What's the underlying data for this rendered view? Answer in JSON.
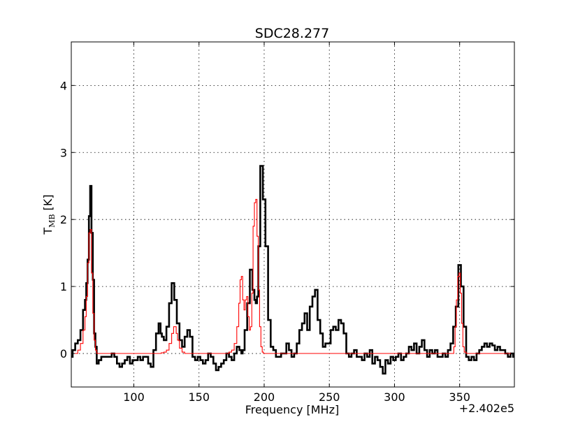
{
  "chart_data": {
    "type": "line",
    "title": "SDC28.277",
    "xlabel": "Frequency [MHz]",
    "ylabel_main": "T",
    "ylabel_sub": "MB",
    "ylabel_unit": " [K]",
    "offset_text": "+2.402e5",
    "xlim": [
      52,
      392
    ],
    "ylim": [
      -0.5,
      4.65
    ],
    "xticks": [
      100,
      150,
      200,
      250,
      300,
      350
    ],
    "yticks": [
      0,
      1,
      2,
      3,
      4
    ],
    "grid": true,
    "series": [
      {
        "color": "#000000",
        "style": "steps-thick",
        "x": [
          52,
          54,
          56,
          58,
          60,
          62,
          63,
          64,
          65,
          66,
          67,
          68,
          69,
          70,
          71,
          72,
          74,
          76,
          78,
          80,
          82,
          84,
          86,
          88,
          90,
          92,
          94,
          96,
          98,
          100,
          102,
          104,
          106,
          108,
          110,
          112,
          114,
          116,
          118,
          120,
          121,
          122,
          124,
          126,
          128,
          130,
          132,
          134,
          136,
          138,
          140,
          142,
          144,
          146,
          148,
          150,
          152,
          154,
          156,
          158,
          160,
          162,
          164,
          166,
          168,
          170,
          172,
          174,
          176,
          178,
          180,
          182,
          183,
          184,
          186,
          188,
          190,
          192,
          193,
          194,
          195,
          196,
          198,
          200,
          202,
          204,
          206,
          208,
          210,
          212,
          214,
          216,
          218,
          220,
          222,
          224,
          226,
          228,
          230,
          232,
          234,
          236,
          238,
          240,
          242,
          244,
          246,
          248,
          250,
          252,
          254,
          256,
          258,
          260,
          262,
          264,
          266,
          268,
          270,
          272,
          274,
          276,
          278,
          280,
          282,
          284,
          286,
          288,
          290,
          292,
          294,
          296,
          298,
          300,
          302,
          304,
          306,
          308,
          310,
          312,
          314,
          316,
          318,
          320,
          322,
          324,
          326,
          328,
          330,
          332,
          334,
          336,
          338,
          340,
          342,
          344,
          346,
          348,
          350,
          352,
          354,
          356,
          358,
          360,
          362,
          364,
          366,
          368,
          370,
          372,
          374,
          376,
          378,
          380,
          382,
          384,
          386,
          388,
          390,
          392
        ],
        "y": [
          -0.05,
          0.05,
          0.15,
          0.2,
          0.35,
          0.65,
          0.8,
          1.05,
          1.4,
          2.05,
          2.5,
          1.8,
          1.1,
          0.3,
          0.1,
          -0.15,
          -0.1,
          -0.05,
          -0.05,
          -0.05,
          -0.05,
          0.0,
          -0.05,
          -0.15,
          -0.2,
          -0.15,
          -0.1,
          -0.05,
          -0.15,
          -0.1,
          -0.1,
          -0.05,
          -0.1,
          -0.05,
          -0.05,
          -0.15,
          -0.2,
          0.05,
          0.3,
          0.45,
          0.3,
          0.25,
          0.2,
          0.4,
          0.75,
          1.05,
          0.8,
          0.45,
          0.2,
          0.1,
          0.25,
          0.35,
          0.25,
          -0.05,
          -0.1,
          -0.05,
          -0.1,
          -0.15,
          -0.1,
          0.0,
          -0.05,
          -0.15,
          -0.25,
          -0.2,
          -0.15,
          -0.1,
          0.0,
          -0.05,
          -0.1,
          0.0,
          0.1,
          0.05,
          0.0,
          0.05,
          0.35,
          0.75,
          1.25,
          0.95,
          0.8,
          0.75,
          0.85,
          1.6,
          2.8,
          2.3,
          1.6,
          0.5,
          0.1,
          0.05,
          -0.05,
          -0.05,
          0.0,
          0.0,
          0.15,
          0.05,
          -0.05,
          0.0,
          0.15,
          0.35,
          0.45,
          0.6,
          0.35,
          0.7,
          0.85,
          0.95,
          0.5,
          0.3,
          0.1,
          0.15,
          0.15,
          0.35,
          0.4,
          0.35,
          0.5,
          0.45,
          0.3,
          0.0,
          -0.05,
          0.0,
          0.05,
          -0.05,
          -0.05,
          -0.1,
          0.0,
          -0.05,
          0.05,
          -0.15,
          -0.05,
          -0.1,
          -0.2,
          -0.3,
          -0.1,
          -0.15,
          -0.05,
          -0.1,
          -0.05,
          0.0,
          -0.1,
          -0.05,
          0.0,
          0.1,
          0.05,
          0.15,
          0.0,
          0.1,
          0.2,
          0.05,
          -0.05,
          0.05,
          0.0,
          0.05,
          -0.05,
          -0.05,
          0.0,
          -0.05,
          0.05,
          0.15,
          0.4,
          0.7,
          1.32,
          1.0,
          0.4,
          -0.05,
          -0.1,
          -0.05,
          -0.1,
          0.0,
          0.05,
          0.1,
          0.15,
          0.1,
          0.15,
          0.12,
          0.05,
          0.1,
          0.05,
          0.05,
          0.0,
          -0.05,
          0.0,
          -0.05
        ]
      },
      {
        "color": "#ff0000",
        "style": "steps-thin",
        "x": [
          52,
          56,
          58,
          60,
          62,
          63,
          64,
          65,
          66,
          67,
          68,
          69,
          70,
          71,
          72,
          74,
          76,
          120,
          122,
          124,
          126,
          128,
          130,
          131,
          132,
          133,
          134,
          136,
          138,
          140,
          150,
          172,
          174,
          176,
          178,
          180,
          181,
          182,
          183,
          184,
          185,
          186,
          187,
          188,
          189,
          190,
          191,
          192,
          193,
          194,
          195,
          196,
          197,
          198,
          199,
          200,
          202,
          204,
          206,
          345,
          346,
          347,
          348,
          349,
          350,
          351,
          352,
          353,
          354,
          356,
          392
        ],
        "y": [
          0,
          0,
          0.05,
          0.15,
          0.35,
          0.55,
          0.85,
          1.35,
          1.8,
          1.85,
          1.2,
          0.6,
          0.2,
          0.05,
          0.0,
          0.0,
          0.0,
          0.0,
          0.01,
          0.02,
          0.05,
          0.15,
          0.3,
          0.4,
          0.4,
          0.3,
          0.2,
          0.08,
          0.02,
          0.0,
          0.0,
          0.0,
          0.02,
          0.05,
          0.15,
          0.4,
          0.75,
          1.1,
          1.15,
          0.8,
          0.65,
          0.8,
          0.85,
          0.55,
          0.35,
          0.4,
          0.9,
          1.9,
          2.25,
          2.3,
          1.75,
          0.95,
          0.4,
          0.1,
          0.02,
          0.0,
          0.0,
          0.0,
          0.0,
          0.0,
          0.1,
          0.4,
          0.8,
          1.15,
          1.2,
          0.9,
          0.45,
          0.1,
          0.02,
          0.0,
          0.0
        ]
      }
    ]
  }
}
